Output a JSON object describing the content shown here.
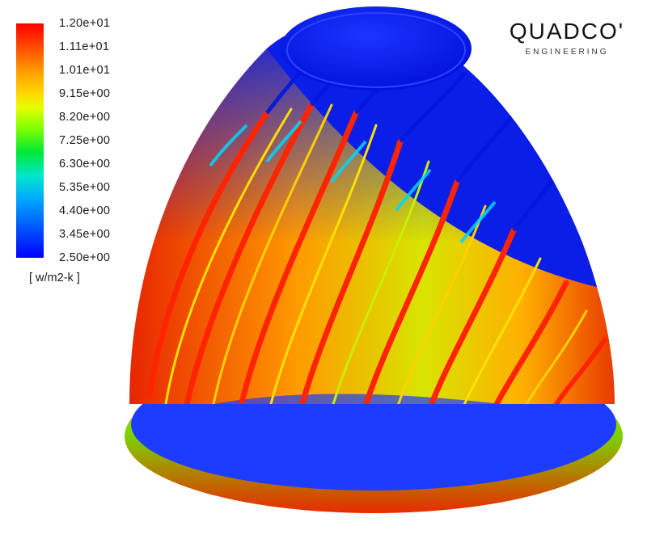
{
  "legend": {
    "ticks": [
      "1.20e+01",
      "1.11e+01",
      "1.01e+01",
      "9.15e+00",
      "8.20e+00",
      "7.25e+00",
      "6.30e+00",
      "5.35e+00",
      "4.40e+00",
      "3.45e+00",
      "2.50e+00"
    ],
    "unit": "[ w/m2-k ]",
    "colors": [
      "#ff0000",
      "#ff9a00",
      "#e6ff00",
      "#00e836",
      "#00a8ff",
      "#0000ff"
    ]
  },
  "logo": {
    "name": "QUADCO'",
    "tagline": "ENGINEERING"
  },
  "render": {
    "object": "finned-dome-heatsink",
    "color_scale": "rainbow"
  }
}
